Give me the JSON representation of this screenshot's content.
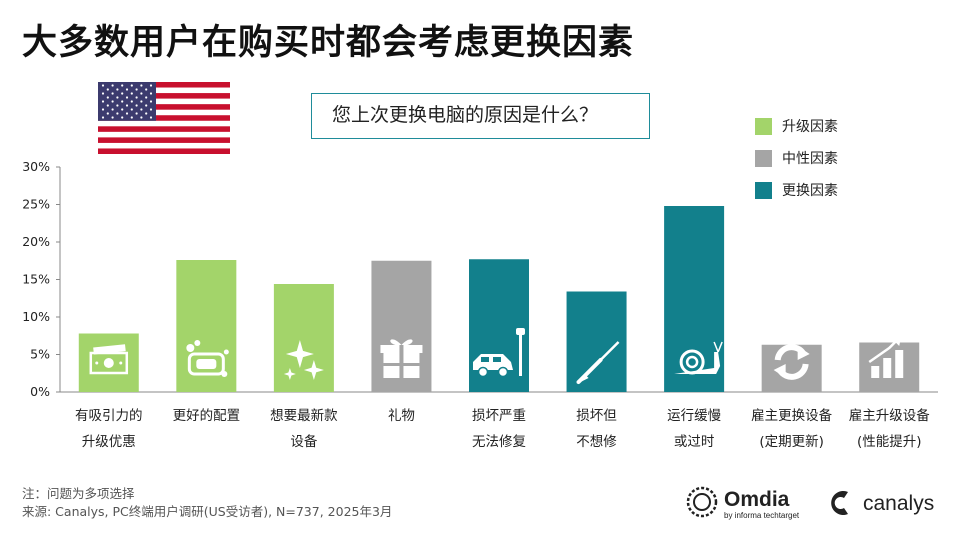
{
  "header": {
    "title": "大多数用户在购买时都会考虑更换因素"
  },
  "question": {
    "text": "您上次更换电脑的原因是什么？"
  },
  "legend": [
    {
      "label": "升级因素",
      "color": "#a3d46a"
    },
    {
      "label": "中性因素",
      "color": "#a5a5a5"
    },
    {
      "label": "更换因素",
      "color": "#12808c"
    }
  ],
  "chart_data": {
    "type": "bar",
    "ylim": [
      0,
      30
    ],
    "yticks": [
      "0%",
      "5%",
      "10%",
      "15%",
      "20%",
      "25%",
      "30%"
    ],
    "grid": false,
    "legend_position": "top-right",
    "categories": [
      {
        "line1": "有吸引力的",
        "line2": "升级优惠",
        "value": 7.8,
        "group": "升级因素",
        "color": "#a3d46a",
        "icon": "money-icon"
      },
      {
        "line1": "更好的配置",
        "line2": "",
        "value": 17.6,
        "group": "升级因素",
        "color": "#a3d46a",
        "icon": "soap-icon"
      },
      {
        "line1": "想要最新款",
        "line2": "设备",
        "value": 14.4,
        "group": "升级因素",
        "color": "#a3d46a",
        "icon": "sparkle-icon"
      },
      {
        "line1": "礼物",
        "line2": "",
        "value": 17.5,
        "group": "中性因素",
        "color": "#a5a5a5",
        "icon": "gift-icon"
      },
      {
        "line1": "损坏严重",
        "line2": "无法修复",
        "value": 17.7,
        "group": "更换因素",
        "color": "#12808c",
        "icon": "car-crash-icon"
      },
      {
        "line1": "损坏但",
        "line2": "不想修",
        "value": 13.4,
        "group": "更换因素",
        "color": "#12808c",
        "icon": "screwdriver-icon"
      },
      {
        "line1": "运行缓慢",
        "line2": "或过时",
        "value": 24.8,
        "group": "更换因素",
        "color": "#12808c",
        "icon": "snail-icon"
      },
      {
        "line1": "雇主更换设备",
        "line2": "(定期更新)",
        "value": 6.3,
        "group": "中性因素",
        "color": "#a5a5a5",
        "icon": "refresh-icon"
      },
      {
        "line1": "雇主升级设备",
        "line2": "(性能提升)",
        "value": 6.6,
        "group": "中性因素",
        "color": "#a5a5a5",
        "icon": "bar-growth-icon"
      }
    ]
  },
  "footer": {
    "note": "注：问题为多项选择",
    "source": "来源: Canalys, PC终端用户调研(US受访者), N=737, 2025年3月"
  },
  "logos": {
    "omdia": "Omdia",
    "omdia_tagline": "by informa techtarget",
    "canalys": "canalys"
  }
}
